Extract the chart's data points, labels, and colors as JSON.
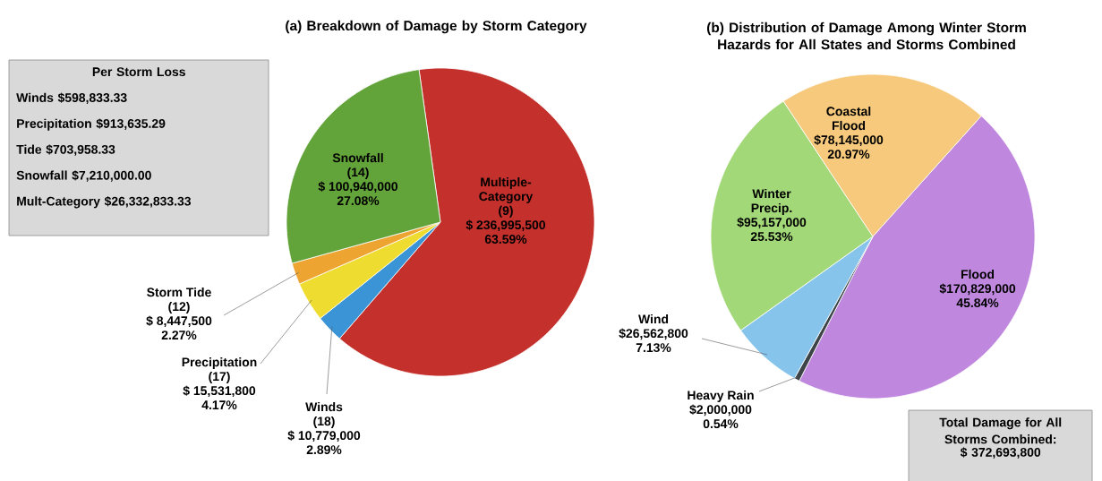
{
  "chart_data": [
    {
      "type": "pie",
      "title": "(a) Breakdown of Damage by Storm Category",
      "categories": [
        "Multiple-Category (9)",
        "Winds (18)",
        "Precipitation (17)",
        "Storm Tide (12)",
        "Snowfall (14)"
      ],
      "values": [
        236995500,
        10779000,
        15531800,
        8447500,
        100940000
      ],
      "colors": [
        "#c4302b",
        "#3b94d6",
        "#eedc30",
        "#eea430",
        "#62a33a"
      ],
      "value_labels": [
        "$ 236,995,500",
        "$ 10,779,000",
        "$ 15,531,800",
        "$ 8,447,500",
        "$ 100,940,000"
      ],
      "annotations": [
        "63.59%",
        "2.89%",
        "4.17%",
        "2.27%",
        "27.08%"
      ]
    },
    {
      "type": "other",
      "title": "Per Storm Loss",
      "annotations": [
        "Winds $598,833.33",
        "Precipitation $913,635.29",
        "Tide $703,958.33",
        "Snowfall $7,210,000.00",
        "Mult-Category $26,332,833.33"
      ]
    },
    {
      "type": "pie",
      "title": "(b) Distribution of Damage Among Winter Storm Hazards for All States and Storms Combined",
      "categories": [
        "Flood",
        "Heavy Rain",
        "Wind",
        "Winter Precip.",
        "Coastal Flood"
      ],
      "values": [
        170829000,
        2000000,
        26562800,
        95157000,
        78145000
      ],
      "colors": [
        "#bf88de",
        "#3c4448",
        "#86c4ec",
        "#a2d878",
        "#f6c97c"
      ],
      "value_labels": [
        "$170,829,000",
        "$2,000,000",
        "$26,562,800",
        "$95,157,000",
        "$78,145,000"
      ],
      "annotations": [
        "45.84%",
        "0.54%",
        "7.13%",
        "25.53%",
        "20.97%"
      ]
    },
    {
      "type": "other",
      "title": "Total Damage for All Storms Combined:",
      "annotations": [
        "$ 372,693,800"
      ]
    }
  ]
}
